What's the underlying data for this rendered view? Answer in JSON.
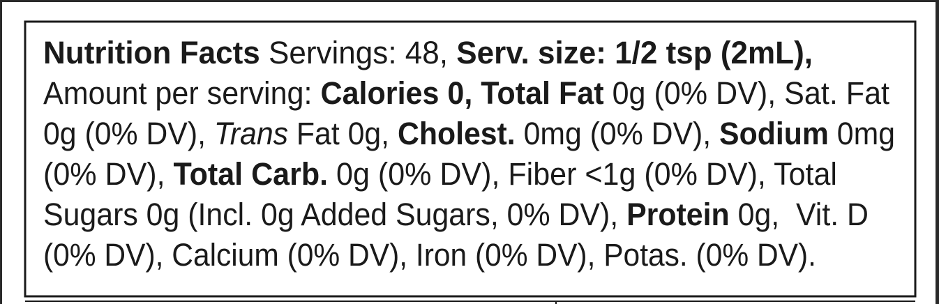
{
  "lines": [
    [
      {
        "text": "Nutrition Facts",
        "bold": true
      },
      {
        "text": " Servings: 48, "
      },
      {
        "text": "Serv. size: 1/2 tsp (2mL),",
        "bold": true
      }
    ],
    [
      {
        "text": "Amount per serving: "
      },
      {
        "text": "Calories 0, Total Fat",
        "bold": true
      },
      {
        "text": " 0g (0% DV), Sat. Fat"
      }
    ],
    [
      {
        "text": "0g (0% DV), "
      },
      {
        "text": "Trans",
        "italic": true
      },
      {
        "text": " Fat 0g, "
      },
      {
        "text": "Cholest.",
        "bold": true
      },
      {
        "text": " 0mg (0% DV), "
      },
      {
        "text": "Sodium",
        "bold": true
      },
      {
        "text": " 0mg"
      }
    ],
    [
      {
        "text": "(0% DV), "
      },
      {
        "text": "Total Carb.",
        "bold": true
      },
      {
        "text": " 0g (0% DV), Fiber <1g (0% DV), Total"
      }
    ],
    [
      {
        "text": "Sugars 0g (Incl. 0g Added Sugars, 0% DV), "
      },
      {
        "text": "Protein",
        "bold": true
      },
      {
        "text": " 0g,  Vit. D"
      }
    ],
    [
      {
        "text": "(0% DV), Calcium (0% DV), Iron (0% DV), Potas. (0% DV)."
      }
    ]
  ]
}
